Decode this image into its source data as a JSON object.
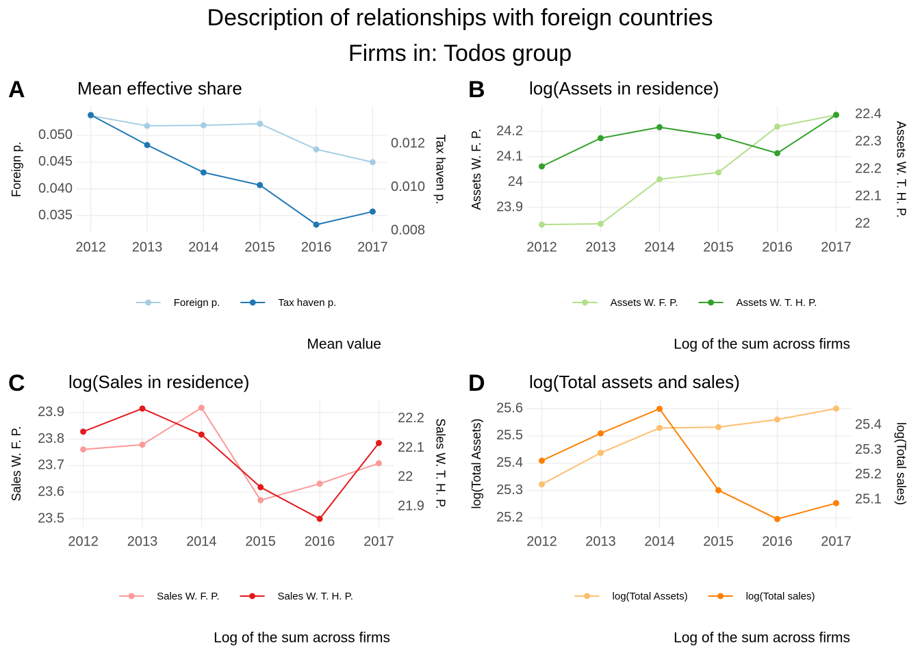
{
  "title": "Description of relationships with foreign countries",
  "subtitle": "Firms in: Todos group",
  "chart_data": [
    {
      "type": "line",
      "tag": "A",
      "title": "Mean effective share",
      "caption": "Mean value",
      "ylabel": "Foreign p.",
      "y2label": "Tax haven p.",
      "x": [
        2012,
        2013,
        2014,
        2015,
        2016,
        2017
      ],
      "xlim": [
        2011.75,
        2017.25
      ],
      "xticks": [
        2012,
        2013,
        2014,
        2015,
        2016,
        2017
      ],
      "ylim": [
        0.0318,
        0.0555
      ],
      "yticks": [
        {
          "value": 0.035,
          "label": "0.035"
        },
        {
          "value": 0.04,
          "label": "0.040"
        },
        {
          "value": 0.045,
          "label": "0.045"
        },
        {
          "value": 0.05,
          "label": "0.050"
        }
      ],
      "y2lim": [
        0.00791,
        0.01373
      ],
      "y2ticks": [
        {
          "value": 0.008,
          "label": "0.008"
        },
        {
          "value": 0.01,
          "label": "0.010"
        },
        {
          "value": 0.012,
          "label": "0.012"
        }
      ],
      "grid": true,
      "series": [
        {
          "name": "Foreign p.",
          "color": "#a6cee3",
          "values": [
            0.0537,
            0.0518,
            0.0519,
            0.0522,
            0.0474,
            0.045
          ]
        },
        {
          "name": "Tax haven p.",
          "color": "#1f78b4",
          "axis": "y2",
          "values": [
            0.01332,
            0.01194,
            0.01068,
            0.0101,
            0.00828,
            0.00888
          ]
        }
      ]
    },
    {
      "type": "line",
      "tag": "B",
      "title": "log(Assets in residence)",
      "caption": "Log of the sum across firms",
      "ylabel": "Assets W. F. P.",
      "y2label": "Assets W. T. H. P.",
      "x": [
        2012,
        2013,
        2014,
        2015,
        2016,
        2017
      ],
      "xlim": [
        2011.75,
        2017.25
      ],
      "xticks": [
        2012,
        2013,
        2014,
        2015,
        2016,
        2017
      ],
      "ylim": [
        23.8,
        24.3
      ],
      "yticks": [
        23.9,
        24.0,
        24.1,
        24.2
      ],
      "y2lim": [
        21.968,
        22.43
      ],
      "y2ticks": [
        22.0,
        22.1,
        22.2,
        22.3,
        22.4
      ],
      "grid": true,
      "series": [
        {
          "name": "Assets W. F. P.",
          "color": "#b2df8a",
          "values": [
            23.832,
            23.835,
            24.011,
            24.038,
            24.219,
            24.265
          ]
        },
        {
          "name": "Assets W. T. H. P.",
          "color": "#33a02c",
          "axis": "y2",
          "values": [
            22.21,
            22.313,
            22.353,
            22.32,
            22.258,
            22.398
          ]
        }
      ]
    },
    {
      "type": "line",
      "tag": "C",
      "title": "log(Sales in residence)",
      "caption": "Log of the sum across firms",
      "ylabel": "Sales W. F. P.",
      "y2label": "Sales W. T. H. P.",
      "x": [
        2012,
        2013,
        2014,
        2015,
        2016,
        2017
      ],
      "xlim": [
        2011.75,
        2017.25
      ],
      "xticks": [
        2012,
        2013,
        2014,
        2015,
        2016,
        2017
      ],
      "ylim": [
        23.469,
        23.946
      ],
      "yticks": [
        23.5,
        23.6,
        23.7,
        23.8,
        23.9
      ],
      "y2lim": [
        21.83,
        22.263
      ],
      "y2ticks": [
        21.9,
        22.0,
        22.1,
        22.2
      ],
      "grid": true,
      "series": [
        {
          "name": "Sales W. F. P.",
          "color": "#fb9a99",
          "values": [
            23.761,
            23.779,
            23.918,
            23.57,
            23.632,
            23.709
          ]
        },
        {
          "name": "Sales W. T. H. P.",
          "color": "#e31a1c",
          "axis": "y2",
          "values": [
            22.156,
            22.235,
            22.146,
            21.966,
            21.858,
            22.117
          ]
        }
      ]
    },
    {
      "type": "line",
      "tag": "D",
      "title": "log(Total assets and sales)",
      "caption": "Log of the sum across firms",
      "ylabel": "log(Total Assets)",
      "y2label": "log(Total sales)",
      "x": [
        2012,
        2013,
        2014,
        2015,
        2016,
        2017
      ],
      "xlim": [
        2011.75,
        2017.25
      ],
      "xticks": [
        2012,
        2013,
        2014,
        2015,
        2016,
        2017
      ],
      "ylim": [
        25.167,
        25.63
      ],
      "yticks": [
        25.2,
        25.3,
        25.4,
        25.5,
        25.6
      ],
      "y2lim": [
        24.99,
        25.5
      ],
      "y2ticks": [
        25.1,
        25.2,
        25.3,
        25.4
      ],
      "grid": true,
      "series": [
        {
          "name": "log(Total Assets)",
          "color": "#fdbf6f",
          "values": [
            25.323,
            25.438,
            25.529,
            25.532,
            25.56,
            25.6
          ]
        },
        {
          "name": "log(Total sales)",
          "color": "#ff7f00",
          "axis": "y2",
          "values": [
            25.257,
            25.367,
            25.466,
            25.138,
            25.022,
            25.086
          ]
        }
      ]
    }
  ]
}
